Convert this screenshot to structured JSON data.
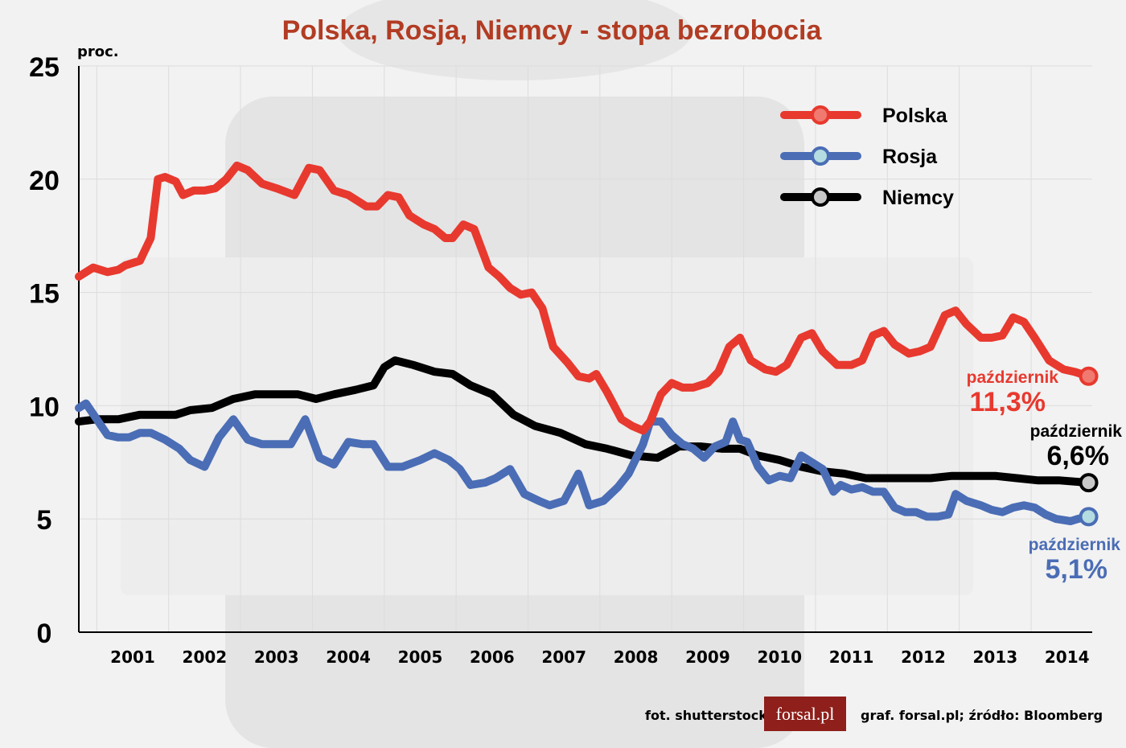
{
  "title": "Polska, Rosja, Niemcy - stopa bezrobocia",
  "colors": {
    "title": "#b23c23",
    "polska": "#e8392f",
    "rosja": "#4a6db5",
    "niemcy": "#000000",
    "axis": "#000000",
    "grid": "#dcdcdc"
  },
  "footer": {
    "photo_credit": "fot. shutterstock",
    "logo_text": "forsal.pl",
    "source": "graf. forsal.pl;  źródło: Bloomberg"
  },
  "chart_data": {
    "type": "line",
    "title": "Polska, Rosja, Niemcy - stopa bezrobocia",
    "ylabel": "proc.",
    "xlabel": "",
    "ylim": [
      0,
      25
    ],
    "yticks": [
      "0",
      "5",
      "10",
      "15",
      "20",
      "25"
    ],
    "xticks": [
      "2001",
      "2002",
      "2003",
      "2004",
      "2005",
      "2006",
      "2007",
      "2008",
      "2009",
      "2010",
      "2011",
      "2012",
      "2013",
      "2014"
    ],
    "xrange": [
      2000.75,
      2014.85
    ],
    "grid": true,
    "legend_position": "top-right",
    "series": [
      {
        "name": "Polska",
        "color": "#e8392f",
        "end_label": "październik",
        "end_value_label": "11,3%",
        "points": [
          [
            2000.75,
            15.7
          ],
          [
            2000.95,
            16.1
          ],
          [
            2001.15,
            15.9
          ],
          [
            2001.3,
            16.0
          ],
          [
            2001.4,
            16.2
          ],
          [
            2001.6,
            16.4
          ],
          [
            2001.75,
            17.4
          ],
          [
            2001.85,
            20.0
          ],
          [
            2001.95,
            20.1
          ],
          [
            2002.1,
            19.9
          ],
          [
            2002.2,
            19.3
          ],
          [
            2002.35,
            19.5
          ],
          [
            2002.5,
            19.5
          ],
          [
            2002.65,
            19.6
          ],
          [
            2002.8,
            20.0
          ],
          [
            2002.95,
            20.6
          ],
          [
            2003.1,
            20.4
          ],
          [
            2003.3,
            19.8
          ],
          [
            2003.5,
            19.6
          ],
          [
            2003.75,
            19.3
          ],
          [
            2003.95,
            20.5
          ],
          [
            2004.1,
            20.4
          ],
          [
            2004.3,
            19.5
          ],
          [
            2004.5,
            19.3
          ],
          [
            2004.75,
            18.8
          ],
          [
            2004.9,
            18.8
          ],
          [
            2005.05,
            19.3
          ],
          [
            2005.2,
            19.2
          ],
          [
            2005.35,
            18.4
          ],
          [
            2005.55,
            18.0
          ],
          [
            2005.7,
            17.8
          ],
          [
            2005.85,
            17.4
          ],
          [
            2005.95,
            17.4
          ],
          [
            2006.1,
            18.0
          ],
          [
            2006.25,
            17.8
          ],
          [
            2006.45,
            16.1
          ],
          [
            2006.6,
            15.7
          ],
          [
            2006.75,
            15.2
          ],
          [
            2006.9,
            14.9
          ],
          [
            2007.05,
            15.0
          ],
          [
            2007.2,
            14.3
          ],
          [
            2007.35,
            12.6
          ],
          [
            2007.55,
            11.9
          ],
          [
            2007.7,
            11.3
          ],
          [
            2007.85,
            11.2
          ],
          [
            2007.95,
            11.4
          ],
          [
            2008.1,
            10.6
          ],
          [
            2008.3,
            9.4
          ],
          [
            2008.45,
            9.1
          ],
          [
            2008.6,
            8.9
          ],
          [
            2008.7,
            9.3
          ],
          [
            2008.85,
            10.5
          ],
          [
            2009.0,
            11.0
          ],
          [
            2009.15,
            10.8
          ],
          [
            2009.3,
            10.8
          ],
          [
            2009.5,
            11.0
          ],
          [
            2009.65,
            11.5
          ],
          [
            2009.8,
            12.6
          ],
          [
            2009.95,
            13.0
          ],
          [
            2010.1,
            12.0
          ],
          [
            2010.3,
            11.6
          ],
          [
            2010.45,
            11.5
          ],
          [
            2010.6,
            11.8
          ],
          [
            2010.8,
            13.0
          ],
          [
            2010.95,
            13.2
          ],
          [
            2011.1,
            12.4
          ],
          [
            2011.3,
            11.8
          ],
          [
            2011.5,
            11.8
          ],
          [
            2011.65,
            12.0
          ],
          [
            2011.8,
            13.1
          ],
          [
            2011.95,
            13.3
          ],
          [
            2012.1,
            12.7
          ],
          [
            2012.3,
            12.3
          ],
          [
            2012.45,
            12.4
          ],
          [
            2012.6,
            12.6
          ],
          [
            2012.8,
            14.0
          ],
          [
            2012.95,
            14.2
          ],
          [
            2013.1,
            13.6
          ],
          [
            2013.3,
            13.0
          ],
          [
            2013.45,
            13.0
          ],
          [
            2013.6,
            13.1
          ],
          [
            2013.75,
            13.9
          ],
          [
            2013.9,
            13.7
          ],
          [
            2014.05,
            13.0
          ],
          [
            2014.25,
            12.0
          ],
          [
            2014.45,
            11.6
          ],
          [
            2014.6,
            11.5
          ],
          [
            2014.8,
            11.3
          ]
        ]
      },
      {
        "name": "Rosja",
        "color": "#4a6db5",
        "end_label": "październik",
        "end_value_label": "5,1%",
        "points": [
          [
            2000.75,
            9.9
          ],
          [
            2000.85,
            10.1
          ],
          [
            2001.0,
            9.4
          ],
          [
            2001.15,
            8.7
          ],
          [
            2001.3,
            8.6
          ],
          [
            2001.45,
            8.6
          ],
          [
            2001.6,
            8.8
          ],
          [
            2001.75,
            8.8
          ],
          [
            2001.95,
            8.5
          ],
          [
            2002.15,
            8.1
          ],
          [
            2002.3,
            7.6
          ],
          [
            2002.5,
            7.3
          ],
          [
            2002.7,
            8.6
          ],
          [
            2002.9,
            9.4
          ],
          [
            2003.1,
            8.5
          ],
          [
            2003.3,
            8.3
          ],
          [
            2003.5,
            8.3
          ],
          [
            2003.7,
            8.3
          ],
          [
            2003.9,
            9.4
          ],
          [
            2004.1,
            7.7
          ],
          [
            2004.3,
            7.4
          ],
          [
            2004.5,
            8.4
          ],
          [
            2004.7,
            8.3
          ],
          [
            2004.85,
            8.3
          ],
          [
            2005.05,
            7.3
          ],
          [
            2005.25,
            7.3
          ],
          [
            2005.5,
            7.6
          ],
          [
            2005.7,
            7.9
          ],
          [
            2005.9,
            7.6
          ],
          [
            2006.05,
            7.2
          ],
          [
            2006.2,
            6.5
          ],
          [
            2006.4,
            6.6
          ],
          [
            2006.55,
            6.8
          ],
          [
            2006.75,
            7.2
          ],
          [
            2006.95,
            6.1
          ],
          [
            2007.15,
            5.8
          ],
          [
            2007.3,
            5.6
          ],
          [
            2007.5,
            5.8
          ],
          [
            2007.7,
            7.0
          ],
          [
            2007.85,
            5.6
          ],
          [
            2008.05,
            5.8
          ],
          [
            2008.25,
            6.4
          ],
          [
            2008.4,
            7.0
          ],
          [
            2008.6,
            8.3
          ],
          [
            2008.7,
            9.3
          ],
          [
            2008.85,
            9.3
          ],
          [
            2009.0,
            8.7
          ],
          [
            2009.15,
            8.3
          ],
          [
            2009.3,
            8.1
          ],
          [
            2009.45,
            7.7
          ],
          [
            2009.6,
            8.2
          ],
          [
            2009.75,
            8.4
          ],
          [
            2009.85,
            9.3
          ],
          [
            2009.95,
            8.5
          ],
          [
            2010.05,
            8.4
          ],
          [
            2010.2,
            7.3
          ],
          [
            2010.35,
            6.7
          ],
          [
            2010.5,
            6.9
          ],
          [
            2010.65,
            6.8
          ],
          [
            2010.8,
            7.8
          ],
          [
            2010.95,
            7.5
          ],
          [
            2011.1,
            7.2
          ],
          [
            2011.25,
            6.2
          ],
          [
            2011.35,
            6.5
          ],
          [
            2011.5,
            6.3
          ],
          [
            2011.65,
            6.4
          ],
          [
            2011.8,
            6.2
          ],
          [
            2011.95,
            6.2
          ],
          [
            2012.1,
            5.5
          ],
          [
            2012.25,
            5.3
          ],
          [
            2012.4,
            5.3
          ],
          [
            2012.55,
            5.1
          ],
          [
            2012.7,
            5.1
          ],
          [
            2012.85,
            5.2
          ],
          [
            2012.95,
            6.1
          ],
          [
            2013.1,
            5.8
          ],
          [
            2013.3,
            5.6
          ],
          [
            2013.45,
            5.4
          ],
          [
            2013.6,
            5.3
          ],
          [
            2013.75,
            5.5
          ],
          [
            2013.9,
            5.6
          ],
          [
            2014.05,
            5.5
          ],
          [
            2014.2,
            5.2
          ],
          [
            2014.35,
            5.0
          ],
          [
            2014.55,
            4.9
          ],
          [
            2014.65,
            5.0
          ],
          [
            2014.8,
            5.1
          ]
        ]
      },
      {
        "name": "Niemcy",
        "color": "#000000",
        "end_label": "październik",
        "end_value_label": "6,6%",
        "points": [
          [
            2000.75,
            9.3
          ],
          [
            2001.0,
            9.4
          ],
          [
            2001.3,
            9.4
          ],
          [
            2001.6,
            9.6
          ],
          [
            2001.9,
            9.6
          ],
          [
            2002.1,
            9.6
          ],
          [
            2002.3,
            9.8
          ],
          [
            2002.6,
            9.9
          ],
          [
            2002.9,
            10.3
          ],
          [
            2003.2,
            10.5
          ],
          [
            2003.5,
            10.5
          ],
          [
            2003.8,
            10.5
          ],
          [
            2004.05,
            10.3
          ],
          [
            2004.3,
            10.5
          ],
          [
            2004.6,
            10.7
          ],
          [
            2004.85,
            10.9
          ],
          [
            2005.0,
            11.7
          ],
          [
            2005.15,
            12.0
          ],
          [
            2005.4,
            11.8
          ],
          [
            2005.7,
            11.5
          ],
          [
            2005.95,
            11.4
          ],
          [
            2006.2,
            10.9
          ],
          [
            2006.5,
            10.5
          ],
          [
            2006.8,
            9.6
          ],
          [
            2007.1,
            9.1
          ],
          [
            2007.45,
            8.8
          ],
          [
            2007.8,
            8.3
          ],
          [
            2008.1,
            8.1
          ],
          [
            2008.45,
            7.8
          ],
          [
            2008.8,
            7.7
          ],
          [
            2009.1,
            8.2
          ],
          [
            2009.4,
            8.2
          ],
          [
            2009.7,
            8.1
          ],
          [
            2009.95,
            8.1
          ],
          [
            2010.2,
            7.8
          ],
          [
            2010.5,
            7.6
          ],
          [
            2010.8,
            7.3
          ],
          [
            2011.1,
            7.1
          ],
          [
            2011.4,
            7.0
          ],
          [
            2011.7,
            6.8
          ],
          [
            2012.0,
            6.8
          ],
          [
            2012.3,
            6.8
          ],
          [
            2012.6,
            6.8
          ],
          [
            2012.9,
            6.9
          ],
          [
            2013.2,
            6.9
          ],
          [
            2013.5,
            6.9
          ],
          [
            2013.8,
            6.8
          ],
          [
            2014.1,
            6.7
          ],
          [
            2014.4,
            6.7
          ],
          [
            2014.8,
            6.6
          ]
        ]
      }
    ]
  }
}
